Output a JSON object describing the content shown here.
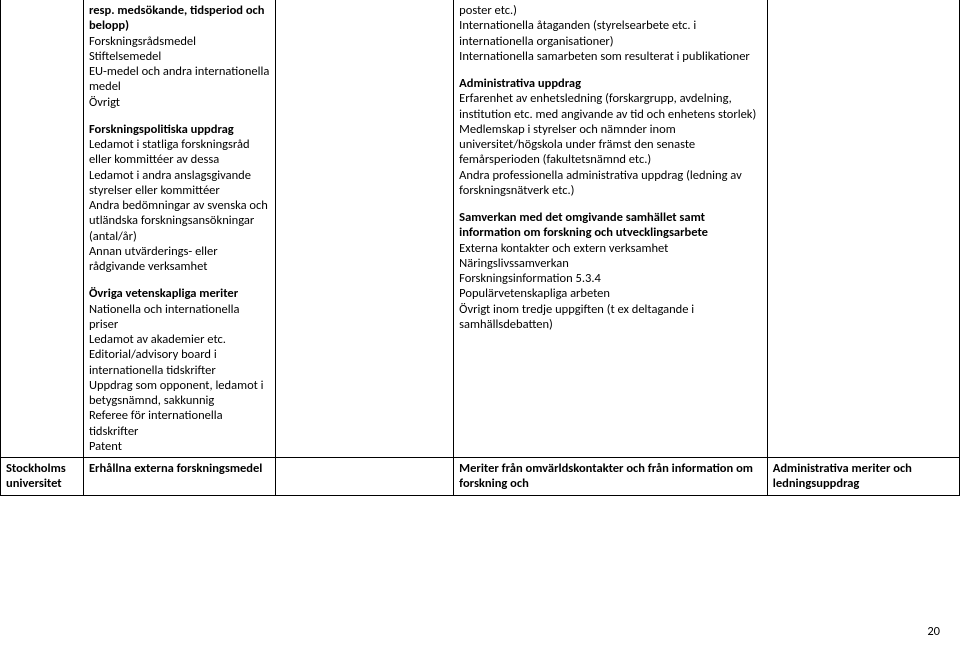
{
  "page_number": "20",
  "row1": {
    "inst": "",
    "colA": {
      "intro": "resp. medsökande, tidsperiod och belopp)",
      "l1": "Forskningsrådsmedel",
      "l2": "Stiftelsemedel",
      "l3": "EU-medel och andra internationella medel",
      "l4": "Övrigt",
      "h2": "Forskningspolitiska uppdrag",
      "p1": "Ledamot i statliga forskningsråd eller kommittéer av dessa",
      "p2": "Ledamot i andra anslagsgivande styrelser eller kommittéer",
      "p3": "Andra bedömningar av svenska och utländska forskningsansökningar (antal/år)",
      "p4": "Annan utvärderings- eller rådgivande verksamhet",
      "h3": "Övriga vetenskapliga meriter",
      "m1": "Nationella och internationella priser",
      "m2": "Ledamot av akademier etc.",
      "m3": "Editorial/advisory board i internationella tidskrifter",
      "m4": "Uppdrag som opponent, ledamot i betygsnämnd, sakkunnig",
      "m5": "Referee för internationella tidskrifter",
      "m6": "Patent"
    },
    "colB": "",
    "colC": {
      "t1": "poster etc.)",
      "t2": "Internationella åtaganden (styrelsearbete etc. i internationella organisationer)",
      "t3": "Internationella samarbeten som resulterat i publikationer",
      "h2": "Administrativa uppdrag",
      "a1": "Erfarenhet av enhetsledning (forskargrupp, avdelning, institution etc. med angivande av tid och enhetens storlek)",
      "a2": "Medlemskap i styrelser och nämnder inom universitet/högskola under främst den senaste femårsperioden (fakultetsnämnd etc.)",
      "a3": "Andra professionella administrativa uppdrag (ledning av forskningsnätverk etc.)",
      "h3": "Samverkan med det omgivande samhället samt information om forskning och utvecklingsarbete",
      "s1": "Externa kontakter och extern verksamhet",
      "s2": "Näringslivssamverkan",
      "s3": "Forskningsinformation 5.3.4",
      "s4": "Populärvetenskapliga arbeten",
      "s5": "Övrigt inom tredje uppgiften (t ex deltagande i samhällsdebatten)"
    },
    "colD": ""
  },
  "row2": {
    "inst": "Stockholms universitet",
    "colA": "Erhållna externa forskningsmedel",
    "colB": "",
    "colC": "Meriter från omvärldskontakter och från information om forskning och",
    "colD": "Administrativa meriter och ledningsuppdrag"
  }
}
